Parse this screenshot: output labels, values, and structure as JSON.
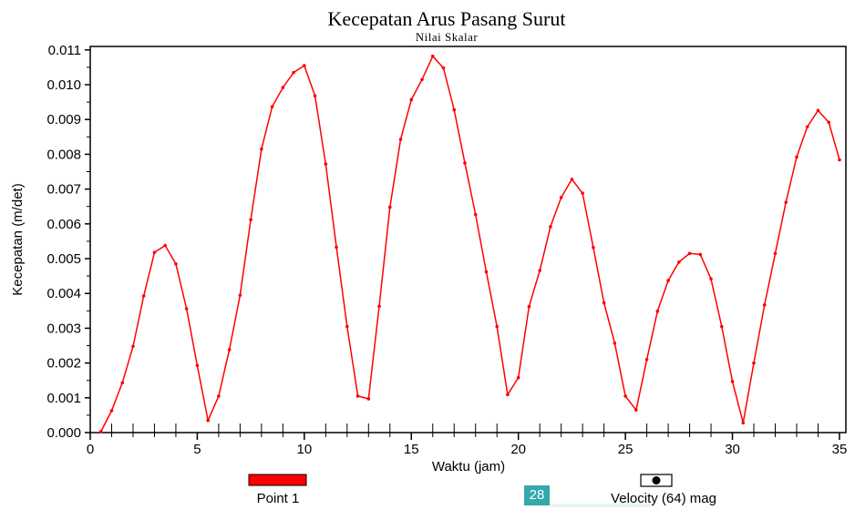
{
  "chart_data": {
    "type": "line",
    "title": "Kecepatan Arus Pasang Surut",
    "subtitle": "Nilai Skalar",
    "xlabel": "Waktu (jam)",
    "ylabel": "Kecepatan (m/det)",
    "xlim": [
      0,
      35.3
    ],
    "ylim": [
      0,
      0.0111
    ],
    "x_ticks": [
      "0",
      "5",
      "10",
      "15",
      "20",
      "25",
      "30",
      "35"
    ],
    "y_ticks": [
      "0.000",
      "0.001",
      "0.002",
      "0.003",
      "0.004",
      "0.005",
      "0.006",
      "0.007",
      "0.008",
      "0.009",
      "0.010",
      "0.011"
    ],
    "grid": false,
    "series": [
      {
        "name": "Point 1",
        "color": "#ff0000",
        "x": [
          0.5,
          1.0,
          1.5,
          2.0,
          2.5,
          3.0,
          3.5,
          4.0,
          4.5,
          5.0,
          5.5,
          6.0,
          6.5,
          7.0,
          7.5,
          8.0,
          8.5,
          9.0,
          9.5,
          10.0,
          10.5,
          11.0,
          11.5,
          12.0,
          12.5,
          13.0,
          13.5,
          14.0,
          14.5,
          15.0,
          15.5,
          16.0,
          16.5,
          17.0,
          17.5,
          18.0,
          18.5,
          19.0,
          19.5,
          20.0,
          20.5,
          21.0,
          21.5,
          22.0,
          22.5,
          23.0,
          23.5,
          24.0,
          24.5,
          25.0,
          25.5,
          26.0,
          26.5,
          27.0,
          27.5,
          28.0,
          28.5,
          29.0,
          29.5,
          30.0,
          30.5,
          31.0,
          31.5,
          32.0,
          32.5,
          33.0,
          33.5,
          34.0,
          34.5,
          35.0
        ],
        "values": [
          3e-05,
          0.00063,
          0.00143,
          0.00248,
          0.00393,
          0.00518,
          0.00538,
          0.00485,
          0.00356,
          0.00193,
          0.00035,
          0.00105,
          0.00238,
          0.00395,
          0.00612,
          0.00815,
          0.00937,
          0.00992,
          0.01035,
          0.01055,
          0.00968,
          0.00772,
          0.00533,
          0.00305,
          0.00105,
          0.00097,
          0.00363,
          0.00648,
          0.00843,
          0.00957,
          0.01015,
          0.01082,
          0.01048,
          0.00928,
          0.00775,
          0.00627,
          0.00462,
          0.00305,
          0.00109,
          0.00158,
          0.00362,
          0.00466,
          0.00592,
          0.00676,
          0.00728,
          0.00688,
          0.00532,
          0.00373,
          0.00257,
          0.00105,
          0.00065,
          0.0021,
          0.00349,
          0.00437,
          0.0049,
          0.00515,
          0.00512,
          0.00442,
          0.00305,
          0.00147,
          0.00028,
          0.002,
          0.00367,
          0.00515,
          0.00662,
          0.00792,
          0.00879,
          0.00926,
          0.00892,
          0.00784
        ]
      }
    ],
    "legend": [
      {
        "label": "Point 1",
        "swatch": "red-bar"
      },
      {
        "label": "Velocity (64) mag",
        "swatch": "filled-circle-box"
      }
    ]
  },
  "page_badge": "28"
}
